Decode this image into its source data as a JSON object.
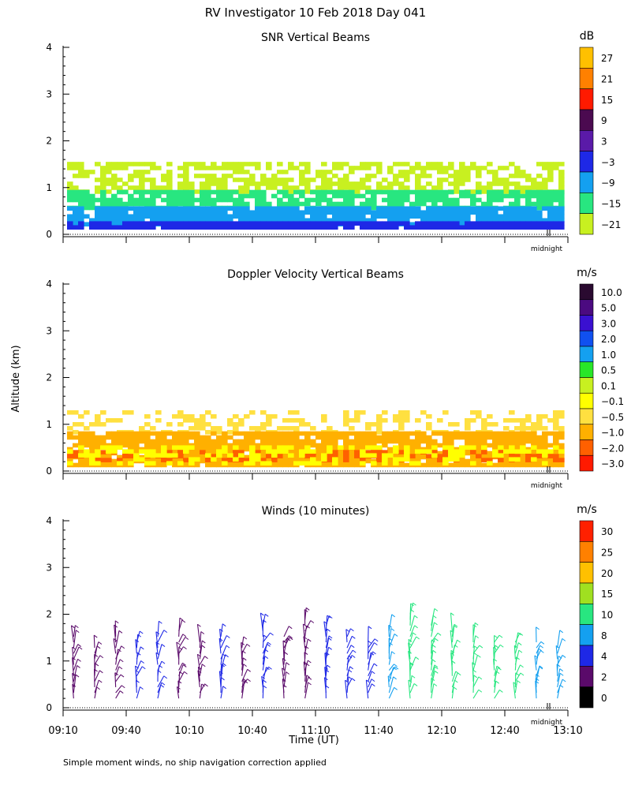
{
  "figure_title": "RV Investigator  10 Feb 2018 Day 041",
  "shared_ylabel": "Altitude (km)",
  "shared_xlabel": "Time (UT)",
  "footnote": "Simple moment winds, no ship navigation correction applied",
  "midnight_label": "midnight",
  "chart_data": [
    {
      "type": "heatmap",
      "title": "SNR Vertical Beams",
      "ylim": [
        0,
        4
      ],
      "yticks": [
        "0",
        "1",
        "2",
        "3",
        "4"
      ],
      "colorbar": {
        "unit": "dB",
        "labels": [
          "27",
          "21",
          "15",
          "9",
          "3",
          "−3",
          "−9",
          "−15",
          "−21"
        ],
        "colors": [
          "#ffc000",
          "#ff8000",
          "#ff1a00",
          "#4b0a50",
          "#5a1aa8",
          "#1e28e6",
          "#14a0f0",
          "#28e680",
          "#c8f020"
        ]
      },
      "layers": [
        {
          "color": "#c8f020",
          "alt_bottom": 0.95,
          "alt_top": 1.55,
          "density": 0.55
        },
        {
          "color": "#28e680",
          "alt_bottom": 0.55,
          "alt_top": 0.95,
          "density": 0.75
        },
        {
          "color": "#14a0f0",
          "alt_bottom": 0.25,
          "alt_top": 0.6,
          "density": 0.9
        },
        {
          "color": "#1e28e6",
          "alt_bottom": 0.18,
          "alt_top": 0.28,
          "density": 0.95
        }
      ]
    },
    {
      "type": "heatmap",
      "title": "Doppler Velocity Vertical Beams",
      "ylim": [
        0,
        4
      ],
      "yticks": [
        "0",
        "1",
        "2",
        "3",
        "4"
      ],
      "colorbar": {
        "unit": "m/s",
        "labels": [
          "10.0",
          "5.0",
          "3.0",
          "2.0",
          "1.0",
          "0.5",
          "0.1",
          "−0.1",
          "−0.5",
          "−1.0",
          "−2.0",
          "−3.0"
        ],
        "colors": [
          "#2a0a30",
          "#4b0a80",
          "#3a10d0",
          "#1050f0",
          "#14a0f0",
          "#28e628",
          "#c8f020",
          "#ffff00",
          "#ffe040",
          "#ffb000",
          "#ff6000",
          "#ff1a00"
        ]
      },
      "layers": [
        {
          "color": "#ffe040",
          "alt_bottom": 0.8,
          "alt_top": 1.3,
          "density": 0.35
        },
        {
          "color": "#ffb000",
          "alt_bottom": 0.15,
          "alt_top": 0.85,
          "density": 0.9
        },
        {
          "color": "#ff6000",
          "alt_bottom": 0.2,
          "alt_top": 0.45,
          "density": 0.45
        },
        {
          "color": "#ffff00",
          "alt_bottom": 0.15,
          "alt_top": 0.55,
          "density": 0.35
        }
      ]
    },
    {
      "type": "scatter",
      "title": "Winds (10 minutes)",
      "ylim": [
        0,
        4
      ],
      "yticks": [
        "0",
        "1",
        "2",
        "3",
        "4"
      ],
      "xlim_minutes": [
        550,
        790
      ],
      "xticks": [
        "09:10",
        "09:40",
        "10:10",
        "10:40",
        "11:10",
        "11:40",
        "12:10",
        "12:40",
        "13:10"
      ],
      "colorbar": {
        "unit": "m/s",
        "labels": [
          "30",
          "25",
          "20",
          "15",
          "10",
          "8",
          "4",
          "2",
          "0"
        ],
        "colors": [
          "#ff2000",
          "#ff8000",
          "#ffc000",
          "#a0e020",
          "#28e680",
          "#14a0f0",
          "#1e28e6",
          "#5a0a6a",
          "#000000"
        ]
      },
      "profiles": [
        {
          "time_min": 555,
          "top_km": 1.6,
          "speed_ms": 4
        },
        {
          "time_min": 565,
          "top_km": 1.4,
          "speed_ms": 5
        },
        {
          "time_min": 575,
          "top_km": 1.55,
          "speed_ms": 4
        },
        {
          "time_min": 585,
          "top_km": 1.5,
          "speed_ms": 6
        },
        {
          "time_min": 595,
          "top_km": 1.6,
          "speed_ms": 8
        },
        {
          "time_min": 605,
          "top_km": 1.7,
          "speed_ms": 4
        },
        {
          "time_min": 615,
          "top_km": 1.5,
          "speed_ms": 5
        },
        {
          "time_min": 625,
          "top_km": 1.55,
          "speed_ms": 6
        },
        {
          "time_min": 635,
          "top_km": 1.3,
          "speed_ms": 4
        },
        {
          "time_min": 645,
          "top_km": 1.8,
          "speed_ms": 6
        },
        {
          "time_min": 655,
          "top_km": 1.55,
          "speed_ms": 4
        },
        {
          "time_min": 665,
          "top_km": 1.9,
          "speed_ms": 5
        },
        {
          "time_min": 675,
          "top_km": 1.85,
          "speed_ms": 6
        },
        {
          "time_min": 685,
          "top_km": 1.6,
          "speed_ms": 8
        },
        {
          "time_min": 695,
          "top_km": 1.5,
          "speed_ms": 9
        },
        {
          "time_min": 705,
          "top_km": 1.75,
          "speed_ms": 12
        },
        {
          "time_min": 715,
          "top_km": 2.05,
          "speed_ms": 14
        },
        {
          "time_min": 725,
          "top_km": 1.8,
          "speed_ms": 15
        },
        {
          "time_min": 735,
          "top_km": 1.7,
          "speed_ms": 16
        },
        {
          "time_min": 745,
          "top_km": 1.6,
          "speed_ms": 17
        },
        {
          "time_min": 755,
          "top_km": 1.5,
          "speed_ms": 15
        },
        {
          "time_min": 765,
          "top_km": 1.45,
          "speed_ms": 14
        },
        {
          "time_min": 775,
          "top_km": 1.5,
          "speed_ms": 13
        },
        {
          "time_min": 785,
          "top_km": 1.3,
          "speed_ms": 12
        }
      ]
    }
  ]
}
